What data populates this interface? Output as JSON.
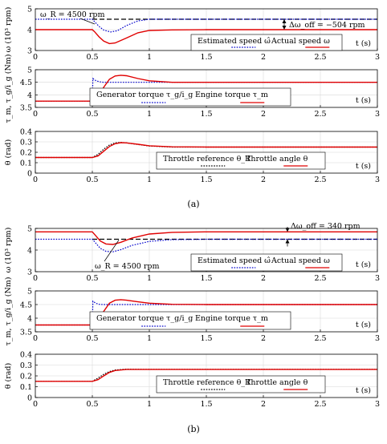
{
  "figures": [
    {
      "caption": "(a)",
      "panels": [
        {
          "ylabel": "ω (10³ rpm)",
          "ylim": [
            3,
            5
          ],
          "yticks": [
            "3",
            "4",
            "5"
          ],
          "xlabel": "t (s)",
          "annotations": [
            "ω_R = 4500 rpm",
            "Δω_off = −504 rpm"
          ],
          "legend": [
            "Estimated speed ω̂",
            "Actual speed ω"
          ],
          "chart_data": {
            "type": "line",
            "xlim": [
              0,
              3
            ],
            "ylim": [
              3,
              5
            ],
            "series": [
              {
                "name": "Estimated speed ω̂",
                "color": "#0000cc",
                "dash": "dot",
                "x": [
                  0,
                  0.5,
                  0.52,
                  0.56,
                  0.6,
                  0.66,
                  0.72,
                  0.8,
                  0.9,
                  1.0,
                  1.2,
                  1.5,
                  3
                ],
                "y": [
                  4.5,
                  4.5,
                  4.38,
                  4.15,
                  3.98,
                  3.89,
                  3.95,
                  4.2,
                  4.42,
                  4.5,
                  4.5,
                  4.5,
                  4.5
                ]
              },
              {
                "name": "Actual speed ω",
                "color": "#e00000",
                "dash": "solid",
                "x": [
                  0,
                  0.5,
                  0.52,
                  0.56,
                  0.6,
                  0.65,
                  0.7,
                  0.8,
                  0.9,
                  1.0,
                  1.2,
                  1.5,
                  3
                ],
                "y": [
                  4.0,
                  4.0,
                  3.9,
                  3.65,
                  3.45,
                  3.33,
                  3.36,
                  3.6,
                  3.85,
                  3.96,
                  3.99,
                  4.0,
                  4.0
                ]
              },
              {
                "name": "",
                "color": "#000000",
                "dash": "dash",
                "x": [
                  0.5,
                  3
                ],
                "y": [
                  4.5,
                  4.5
                ]
              }
            ]
          }
        },
        {
          "ylabel": "τ_m, τ_g/i_g (Nm)",
          "ylim": [
            3.5,
            5
          ],
          "yticks": [
            "3.5",
            "4",
            "4.5",
            "5"
          ],
          "xlabel": "t (s)",
          "legend": [
            "Generator torque τ_g/i_g",
            "Engine torque τ_m"
          ],
          "chart_data": {
            "type": "line",
            "xlim": [
              0,
              3
            ],
            "ylim": [
              3.5,
              5
            ],
            "series": [
              {
                "name": "Generator torque τ_g/i_g",
                "color": "#0000cc",
                "dash": "dot",
                "x": [
                  0,
                  0.5,
                  0.505,
                  0.53,
                  0.56,
                  0.6,
                  0.7,
                  0.9,
                  1.5,
                  3
                ],
                "y": [
                  3.75,
                  3.75,
                  4.65,
                  4.57,
                  4.52,
                  4.5,
                  4.5,
                  4.5,
                  4.5,
                  4.5
                ]
              },
              {
                "name": "Engine torque τ_m",
                "color": "#e00000",
                "dash": "solid",
                "x": [
                  0,
                  0.5,
                  0.55,
                  0.6,
                  0.65,
                  0.7,
                  0.75,
                  0.8,
                  0.9,
                  1.0,
                  1.2,
                  1.5,
                  3
                ],
                "y": [
                  3.75,
                  3.75,
                  3.85,
                  4.3,
                  4.62,
                  4.75,
                  4.78,
                  4.76,
                  4.65,
                  4.56,
                  4.5,
                  4.5,
                  4.5
                ]
              }
            ]
          }
        },
        {
          "ylabel": "θ (rad)",
          "ylim": [
            0,
            0.4
          ],
          "yticks": [
            "0",
            "0.1",
            "0.2",
            "0.3",
            "0.4"
          ],
          "xlabel": "t (s)",
          "legend": [
            "Throttle reference θ_R",
            "Throttle angle θ"
          ],
          "chart_data": {
            "type": "line",
            "xlim": [
              0,
              3
            ],
            "ylim": [
              0,
              0.4
            ],
            "series": [
              {
                "name": "Throttle reference θ_R",
                "color": "#000000",
                "dash": "dot",
                "x": [
                  0,
                  0.5,
                  0.55,
                  0.6,
                  0.65,
                  0.7,
                  0.75,
                  0.8,
                  0.9,
                  1.0,
                  1.2,
                  1.5,
                  3
                ],
                "y": [
                  0.15,
                  0.15,
                  0.18,
                  0.23,
                  0.27,
                  0.29,
                  0.295,
                  0.29,
                  0.275,
                  0.26,
                  0.25,
                  0.25,
                  0.25
                ]
              },
              {
                "name": "Throttle angle θ",
                "color": "#e00000",
                "dash": "solid",
                "x": [
                  0,
                  0.5,
                  0.55,
                  0.6,
                  0.65,
                  0.7,
                  0.75,
                  0.8,
                  0.9,
                  1.0,
                  1.2,
                  1.5,
                  3
                ],
                "y": [
                  0.15,
                  0.15,
                  0.165,
                  0.21,
                  0.255,
                  0.282,
                  0.292,
                  0.29,
                  0.277,
                  0.262,
                  0.252,
                  0.25,
                  0.25
                ]
              }
            ]
          }
        }
      ]
    },
    {
      "caption": "(b)",
      "panels": [
        {
          "ylabel": "ω (10³ rpm)",
          "ylim": [
            3,
            5
          ],
          "yticks": [
            "3",
            "4",
            "5"
          ],
          "xlabel": "t (s)",
          "annotations": [
            "ω_R = 4500 rpm",
            "Δω_off = 340 rpm"
          ],
          "legend": [
            "Estimated speed ω̂",
            "Actual speed ω"
          ],
          "chart_data": {
            "type": "line",
            "xlim": [
              0,
              3
            ],
            "ylim": [
              3,
              5
            ],
            "series": [
              {
                "name": "Estimated speed ω̂",
                "color": "#0000cc",
                "dash": "dot",
                "x": [
                  0,
                  0.5,
                  0.53,
                  0.57,
                  0.62,
                  0.68,
                  0.75,
                  0.85,
                  1.0,
                  1.2,
                  1.5,
                  3
                ],
                "y": [
                  4.5,
                  4.5,
                  4.32,
                  4.08,
                  3.94,
                  3.92,
                  4.02,
                  4.22,
                  4.4,
                  4.48,
                  4.5,
                  4.5
                ]
              },
              {
                "name": "Actual speed ω",
                "color": "#e00000",
                "dash": "solid",
                "x": [
                  0,
                  0.5,
                  0.53,
                  0.57,
                  0.62,
                  0.68,
                  0.75,
                  0.85,
                  1.0,
                  1.2,
                  1.5,
                  3
                ],
                "y": [
                  4.84,
                  4.84,
                  4.66,
                  4.42,
                  4.28,
                  4.26,
                  4.36,
                  4.56,
                  4.74,
                  4.82,
                  4.84,
                  4.84
                ]
              },
              {
                "name": "",
                "color": "#000000",
                "dash": "dash",
                "x": [
                  0.5,
                  3
                ],
                "y": [
                  4.5,
                  4.5
                ]
              }
            ]
          }
        },
        {
          "ylabel": "τ_m, τ_g/i_g (Nm)",
          "ylim": [
            3.5,
            5
          ],
          "yticks": [
            "3.5",
            "4",
            "4.5",
            "5"
          ],
          "xlabel": "t (s)",
          "legend": [
            "Generator torque τ_g/i_g",
            "Engine torque τ_m"
          ],
          "chart_data": {
            "type": "line",
            "xlim": [
              0,
              3
            ],
            "ylim": [
              3.5,
              5
            ],
            "series": [
              {
                "name": "Generator torque τ_g/i_g",
                "color": "#0000cc",
                "dash": "dot",
                "x": [
                  0,
                  0.5,
                  0.505,
                  0.53,
                  0.56,
                  0.6,
                  0.7,
                  0.9,
                  1.5,
                  3
                ],
                "y": [
                  3.75,
                  3.75,
                  4.62,
                  4.55,
                  4.51,
                  4.5,
                  4.5,
                  4.5,
                  4.5,
                  4.5
                ]
              },
              {
                "name": "Engine torque τ_m",
                "color": "#e00000",
                "dash": "solid",
                "x": [
                  0,
                  0.5,
                  0.55,
                  0.6,
                  0.65,
                  0.7,
                  0.75,
                  0.8,
                  0.9,
                  1.0,
                  1.2,
                  1.5,
                  3
                ],
                "y": [
                  3.75,
                  3.75,
                  3.85,
                  4.25,
                  4.55,
                  4.66,
                  4.68,
                  4.66,
                  4.6,
                  4.55,
                  4.51,
                  4.5,
                  4.5
                ]
              }
            ]
          }
        },
        {
          "ylabel": "θ (rad)",
          "ylim": [
            0,
            0.4
          ],
          "yticks": [
            "0",
            "0.1",
            "0.2",
            "0.3",
            "0.4"
          ],
          "xlabel": "t (s)",
          "legend": [
            "Throttle reference θ_R",
            "Throttle angle θ"
          ],
          "chart_data": {
            "type": "line",
            "xlim": [
              0,
              3
            ],
            "ylim": [
              0,
              0.4
            ],
            "series": [
              {
                "name": "Throttle reference θ_R",
                "color": "#000000",
                "dash": "dot",
                "x": [
                  0,
                  0.5,
                  0.55,
                  0.6,
                  0.65,
                  0.7,
                  0.8,
                  1.0,
                  1.5,
                  3
                ],
                "y": [
                  0.15,
                  0.15,
                  0.18,
                  0.215,
                  0.24,
                  0.255,
                  0.262,
                  0.26,
                  0.26,
                  0.26
                ]
              },
              {
                "name": "Throttle angle θ",
                "color": "#e00000",
                "dash": "solid",
                "x": [
                  0,
                  0.5,
                  0.55,
                  0.6,
                  0.65,
                  0.7,
                  0.8,
                  1.0,
                  1.5,
                  3
                ],
                "y": [
                  0.15,
                  0.15,
                  0.165,
                  0.2,
                  0.232,
                  0.25,
                  0.26,
                  0.26,
                  0.26,
                  0.26
                ]
              }
            ]
          }
        }
      ]
    }
  ],
  "xticks": [
    "0",
    "0.5",
    "1",
    "1.5",
    "2",
    "2.5",
    "3"
  ]
}
